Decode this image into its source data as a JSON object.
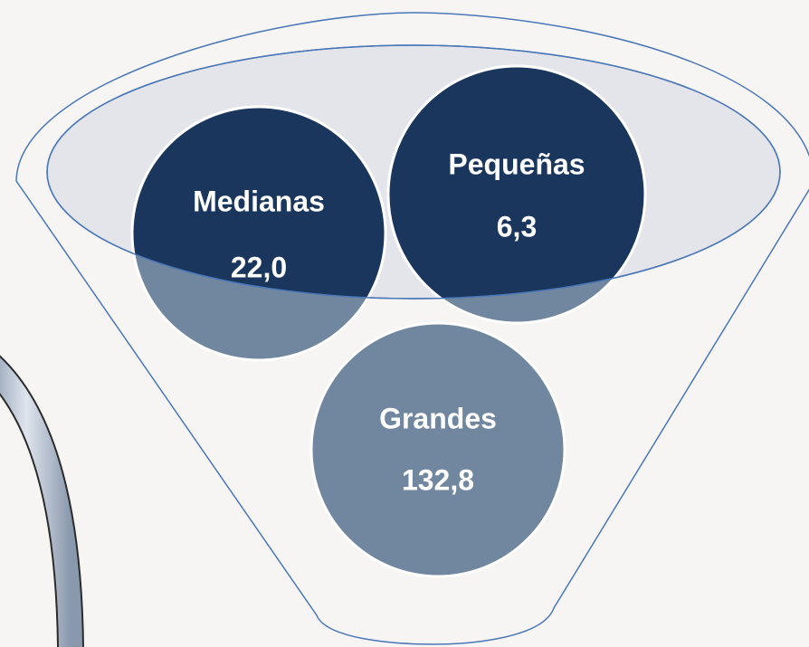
{
  "items": [
    {
      "label": "Medianas",
      "value": "22,0"
    },
    {
      "label": "Pequeñas",
      "value": "6,3"
    },
    {
      "label": "Grandes",
      "value": "132,8"
    }
  ]
}
